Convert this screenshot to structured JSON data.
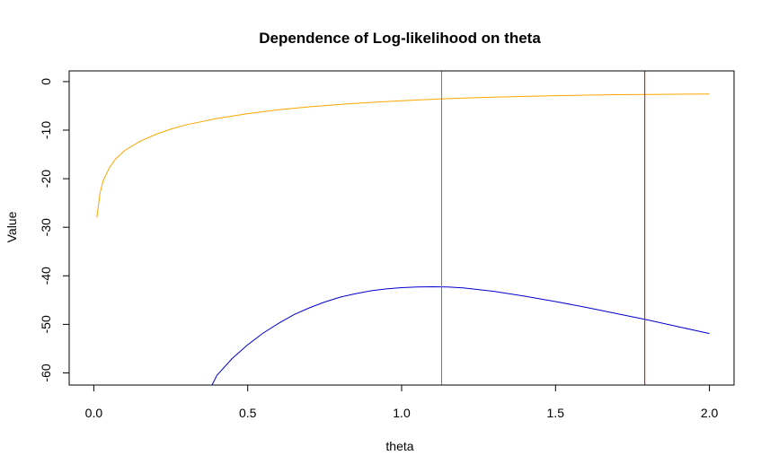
{
  "chart_data": {
    "type": "line",
    "title": "Dependence of Log-likelihood on theta",
    "xlabel": "theta",
    "ylabel": "Value",
    "xlim": [
      -0.08,
      2.08
    ],
    "ylim": [
      -62.5,
      2.2
    ],
    "xticks": [
      {
        "value": 0.0,
        "label": "0.0"
      },
      {
        "value": 0.5,
        "label": "0.5"
      },
      {
        "value": 1.0,
        "label": "1.0"
      },
      {
        "value": 1.5,
        "label": "1.5"
      },
      {
        "value": 2.0,
        "label": "2.0"
      }
    ],
    "yticks": [
      {
        "value": 0,
        "label": "0"
      },
      {
        "value": -10,
        "label": "-10"
      },
      {
        "value": -20,
        "label": "-20"
      },
      {
        "value": -30,
        "label": "-30"
      },
      {
        "value": -40,
        "label": "-40"
      },
      {
        "value": -50,
        "label": "-50"
      },
      {
        "value": -60,
        "label": "-60"
      }
    ],
    "grid": false,
    "legend": "none",
    "series": [
      {
        "color": "#FFA500",
        "x": [
          0.01,
          0.02,
          0.03,
          0.05,
          0.07,
          0.1,
          0.15,
          0.2,
          0.25,
          0.3,
          0.4,
          0.5,
          0.6,
          0.7,
          0.8,
          0.9,
          1.0,
          1.1,
          1.2,
          1.3,
          1.4,
          1.5,
          1.6,
          1.7,
          1.8,
          1.9,
          2.0
        ],
        "y": [
          -28.0,
          -23.0,
          -20.5,
          -17.8,
          -16.0,
          -14.2,
          -12.3,
          -10.9,
          -9.8,
          -8.9,
          -7.6,
          -6.6,
          -5.8,
          -5.2,
          -4.7,
          -4.3,
          -3.95,
          -3.65,
          -3.4,
          -3.2,
          -3.05,
          -2.9,
          -2.8,
          -2.7,
          -2.65,
          -2.6,
          -2.55
        ]
      },
      {
        "color": "#0000CD",
        "x": [
          0.38,
          0.4,
          0.45,
          0.5,
          0.55,
          0.6,
          0.65,
          0.7,
          0.75,
          0.8,
          0.85,
          0.9,
          0.95,
          1.0,
          1.05,
          1.1,
          1.15,
          1.2,
          1.3,
          1.4,
          1.5,
          1.6,
          1.7,
          1.8,
          1.9,
          2.0
        ],
        "y": [
          -63.0,
          -60.5,
          -57.0,
          -54.2,
          -51.8,
          -49.8,
          -48.0,
          -46.6,
          -45.4,
          -44.4,
          -43.7,
          -43.1,
          -42.7,
          -42.45,
          -42.3,
          -42.25,
          -42.3,
          -42.5,
          -43.2,
          -44.2,
          -45.3,
          -46.5,
          -47.8,
          -49.1,
          -50.5,
          -51.9
        ]
      }
    ],
    "vlines": [
      {
        "x": 1.13,
        "color": "#00CD00"
      },
      {
        "x": 1.79,
        "color": "#CD0000"
      }
    ]
  }
}
